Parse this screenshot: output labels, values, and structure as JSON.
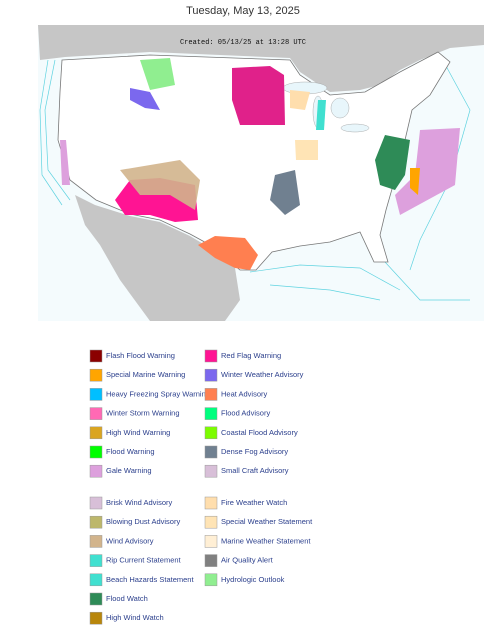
{
  "header": {
    "date": "Tuesday, May 13, 2025"
  },
  "map": {
    "created": "Created: 05/13/25 at 13:28 UTC"
  },
  "legend": {
    "groups": [
      {
        "left": [
          {
            "label": "Flash Flood Warning",
            "color": "#8b0000"
          },
          {
            "label": "Special Marine Warning",
            "color": "#ffa500"
          },
          {
            "label": "Heavy Freezing Spray Warning",
            "color": "#00bfff"
          },
          {
            "label": "Winter Storm Warning",
            "color": "#ff69b4"
          },
          {
            "label": "High Wind Warning",
            "color": "#daa520"
          },
          {
            "label": "Flood Warning",
            "color": "#00ff00"
          },
          {
            "label": "Gale Warning",
            "color": "#dda0dd"
          }
        ],
        "right": [
          {
            "label": "Red Flag Warning",
            "color": "#ff1493"
          },
          {
            "label": "Winter Weather Advisory",
            "color": "#7b68ee"
          },
          {
            "label": "Heat Advisory",
            "color": "#ff7f50"
          },
          {
            "label": "Flood Advisory",
            "color": "#00ff7f"
          },
          {
            "label": "Coastal Flood Advisory",
            "color": "#7cfc00"
          },
          {
            "label": "Dense Fog Advisory",
            "color": "#708090"
          },
          {
            "label": "Small Craft Advisory",
            "color": "#d8bfd8"
          }
        ]
      },
      {
        "left": [
          {
            "label": "Brisk Wind Advisory",
            "color": "#d8bfd8"
          },
          {
            "label": "Blowing Dust Advisory",
            "color": "#bdb76b"
          },
          {
            "label": "Wind Advisory",
            "color": "#d2b48c"
          },
          {
            "label": "Rip Current Statement",
            "color": "#40e0d0"
          },
          {
            "label": "Beach Hazards Statement",
            "color": "#40e0d0"
          },
          {
            "label": "Flood Watch",
            "color": "#2e8b57"
          },
          {
            "label": "High Wind Watch",
            "color": "#b8860b"
          }
        ],
        "right": [
          {
            "label": "Fire Weather Watch",
            "color": "#ffdead"
          },
          {
            "label": "Special Weather Statement",
            "color": "#ffe4b5"
          },
          {
            "label": "Marine Weather Statement",
            "color": "#ffefd5"
          },
          {
            "label": "Air Quality Alert",
            "color": "#808080"
          },
          {
            "label": "Hydrologic Outlook",
            "color": "#90ee90"
          }
        ]
      }
    ]
  }
}
